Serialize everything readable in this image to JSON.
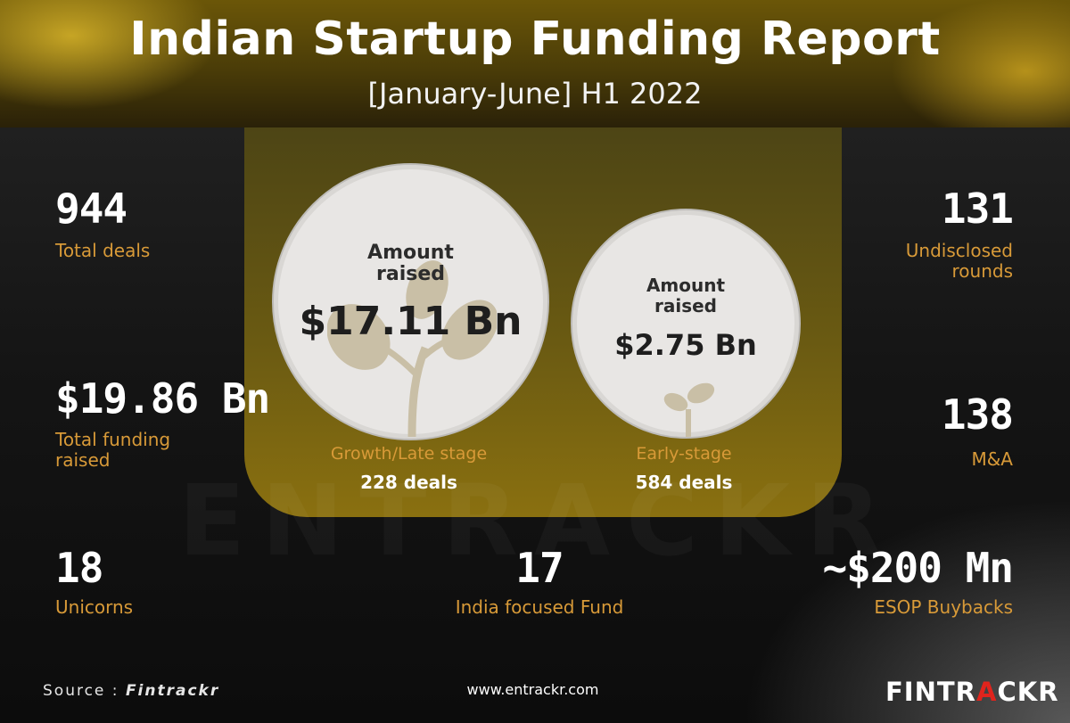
{
  "header": {
    "title": "Indian Startup Funding Report",
    "subtitle": "[January-June] H1 2022"
  },
  "watermark": "ENTRACKR",
  "stats": {
    "total_deals": {
      "value": "944",
      "label": "Total deals"
    },
    "total_funding": {
      "value": "$19.86 Bn",
      "label_line1": "Total funding",
      "label_line2": "raised"
    },
    "unicorns": {
      "value": "18",
      "label": "Unicorns"
    },
    "undisclosed": {
      "value": "131",
      "label_line1": "Undisclosed",
      "label_line2": "rounds"
    },
    "mna": {
      "value": "138",
      "label": "M&A"
    },
    "esop": {
      "value": "~$200 Mn",
      "label": "ESOP Buybacks"
    },
    "india_fund": {
      "value": "17",
      "label": "India focused Fund"
    }
  },
  "circles": {
    "growth": {
      "label_line1": "Amount",
      "label_line2": "raised",
      "amount": "$17.11 Bn",
      "stage": "Growth/Late stage",
      "deals": "228 deals"
    },
    "early": {
      "label_line1": "Amount",
      "label_line2": "raised",
      "amount": "$2.75 Bn",
      "stage": "Early-stage",
      "deals": "584 deals"
    }
  },
  "footer": {
    "source_prefix": "Source : ",
    "source_name": "Fintrackr",
    "website": "www.entrackr.com",
    "logo_part1": "FINTR",
    "logo_part2": "A",
    "logo_part3": "CKR"
  },
  "colors": {
    "accent": "#d89a38",
    "header_gold": "#6b5608",
    "logo_red": "#e0241d"
  }
}
